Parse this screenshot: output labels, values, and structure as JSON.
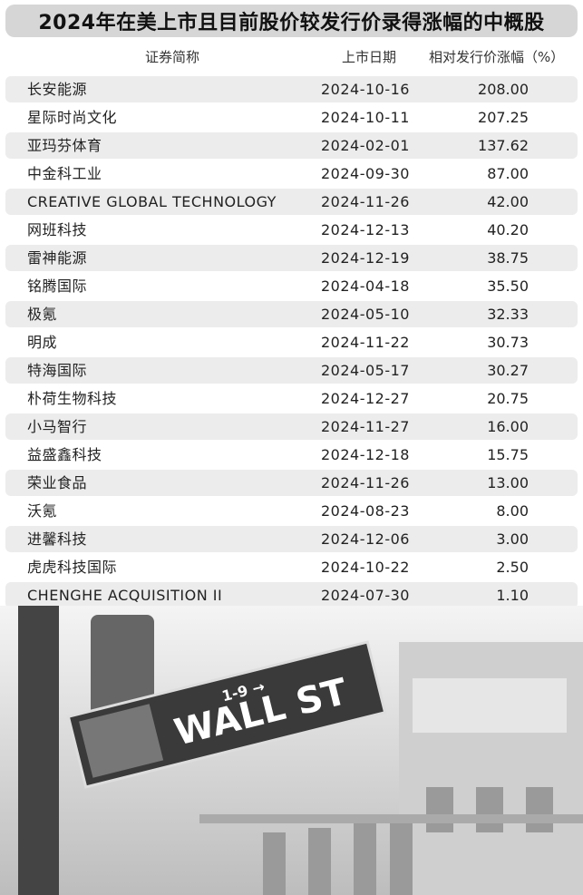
{
  "title": "2024年在美上市且目前股价较发行价录得涨幅的中概股",
  "columns": [
    "证券简称",
    "上市日期",
    "相对发行价涨幅（%）"
  ],
  "rows": [
    {
      "name": "长安能源",
      "date": "2024-10-16",
      "gain": "208.00"
    },
    {
      "name": "星际时尚文化",
      "date": "2024-10-11",
      "gain": "207.25"
    },
    {
      "name": "亚玛芬体育",
      "date": "2024-02-01",
      "gain": "137.62"
    },
    {
      "name": "中金科工业",
      "date": "2024-09-30",
      "gain": "87.00"
    },
    {
      "name": "CREATIVE GLOBAL TECHNOLOGY",
      "date": "2024-11-26",
      "gain": "42.00"
    },
    {
      "name": "网班科技",
      "date": "2024-12-13",
      "gain": "40.20"
    },
    {
      "name": "雷神能源",
      "date": "2024-12-19",
      "gain": "38.75"
    },
    {
      "name": "铭腾国际",
      "date": "2024-04-18",
      "gain": "35.50"
    },
    {
      "name": "极氪",
      "date": "2024-05-10",
      "gain": "32.33"
    },
    {
      "name": "明成",
      "date": "2024-11-22",
      "gain": "30.73"
    },
    {
      "name": "特海国际",
      "date": "2024-05-17",
      "gain": "30.27"
    },
    {
      "name": "朴荷生物科技",
      "date": "2024-12-27",
      "gain": "20.75"
    },
    {
      "name": "小马智行",
      "date": "2024-11-27",
      "gain": "16.00"
    },
    {
      "name": "益盛鑫科技",
      "date": "2024-12-18",
      "gain": "15.75"
    },
    {
      "name": "荣业食品",
      "date": "2024-11-26",
      "gain": "13.00"
    },
    {
      "name": "沃氪",
      "date": "2024-08-23",
      "gain": "8.00"
    },
    {
      "name": "进馨科技",
      "date": "2024-12-06",
      "gain": "3.00"
    },
    {
      "name": "虎虎科技国际",
      "date": "2024-10-22",
      "gain": "2.50"
    },
    {
      "name": "CHENGHE ACQUISITION II",
      "date": "2024-07-30",
      "gain": "1.10"
    }
  ],
  "photo": {
    "sign_text": "WALL ST",
    "sign_number": "1-9 →"
  },
  "colors": {
    "title_bg": "#d6d6d6",
    "alt_row_bg": "#ececec"
  }
}
